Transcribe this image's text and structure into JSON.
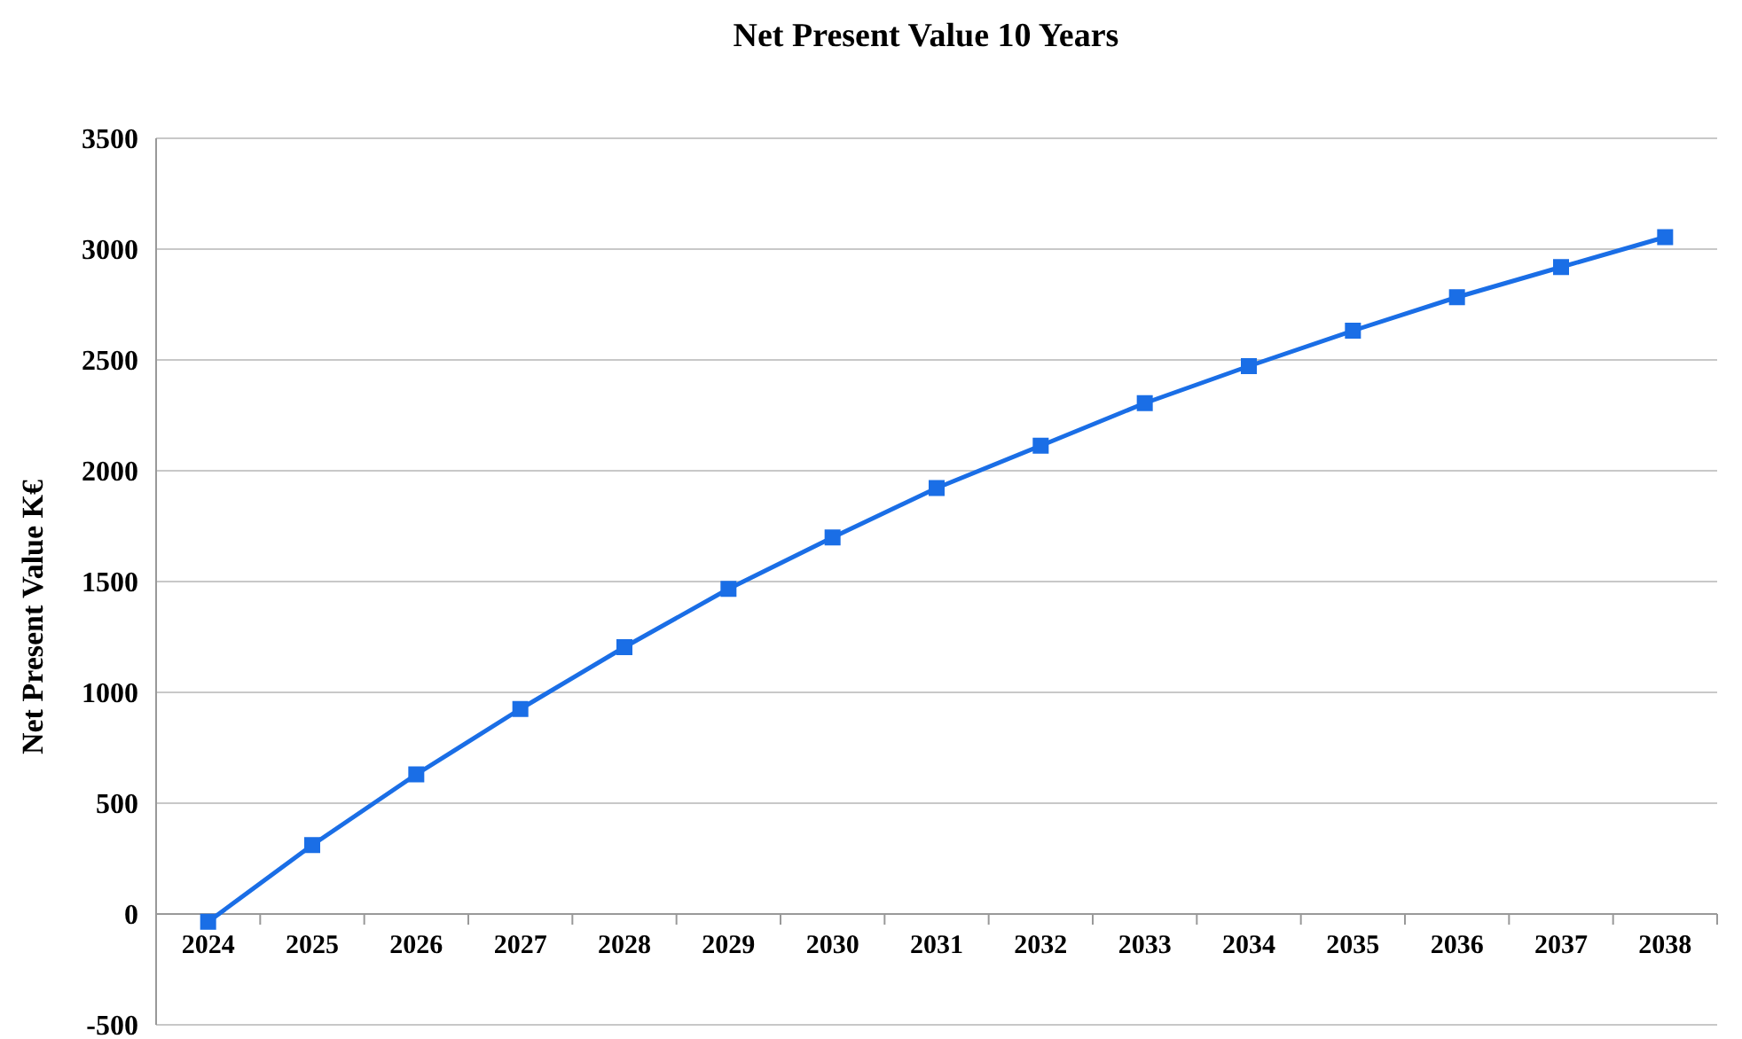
{
  "chart_data": {
    "type": "line",
    "title": "Net Present Value 10 Years",
    "ylabel": "Net Present Value K€",
    "categories": [
      "2024",
      "2025",
      "2026",
      "2027",
      "2028",
      "2029",
      "2030",
      "2031",
      "2032",
      "2033",
      "2034",
      "2035",
      "2036",
      "2037",
      "2038"
    ],
    "series": [
      {
        "color": "#1a6ee6",
        "values": [
          -35,
          311,
          630,
          925,
          1204,
          1467,
          1699,
          1922,
          2113,
          2305,
          2472,
          2632,
          2783,
          2919,
          3054
        ]
      }
    ],
    "ylim": [
      -500,
      3500
    ],
    "yticks": [
      -500,
      0,
      500,
      1000,
      1500,
      2000,
      2500,
      3000,
      3500
    ],
    "grid": "y",
    "marker": "square",
    "line_style": "solid"
  }
}
